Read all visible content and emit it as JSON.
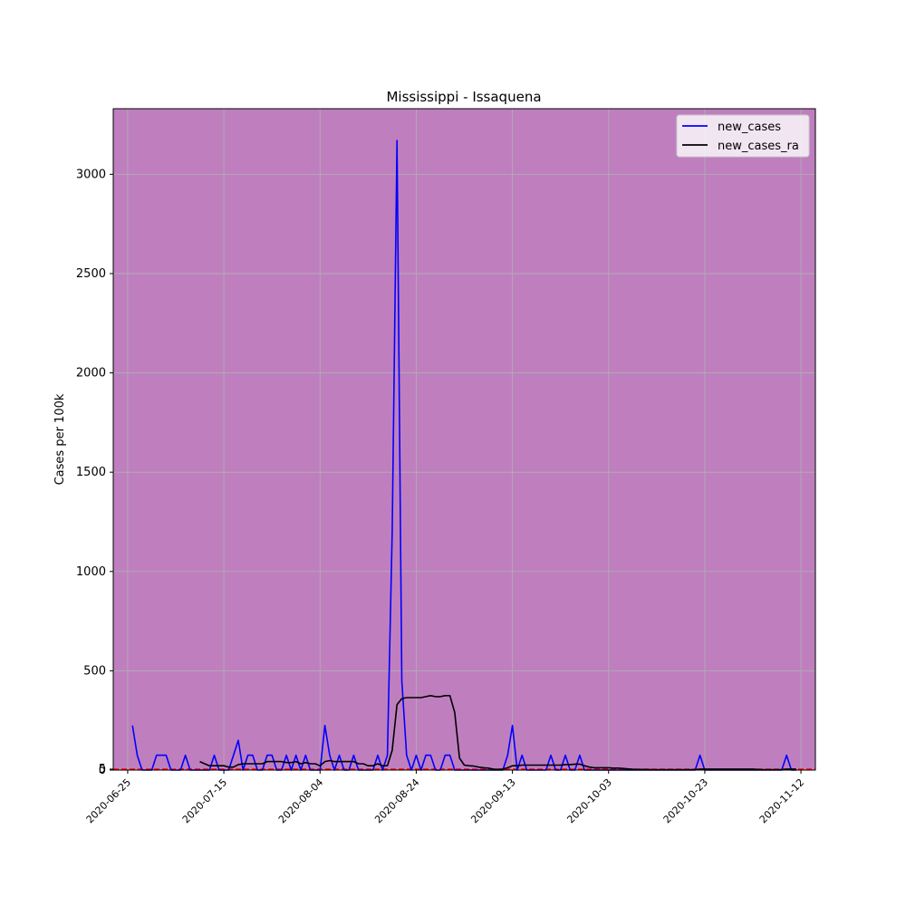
{
  "chart_data": {
    "type": "line",
    "title": "Mississippi - Issaquena",
    "xlabel": "",
    "ylabel": "Cases per 100k",
    "x_start": "2020-06-22",
    "x_end": "2020-11-15",
    "ylim": [
      0,
      3330
    ],
    "grid": true,
    "legend_position": "top-right",
    "colors": {
      "background": "#bf7fbf",
      "new_cases": "#0000ff",
      "new_cases_ra": "#000000",
      "grid": "#b0b0b0",
      "baseline": "#ff0000"
    },
    "x_ticks": [
      "2020-06-25",
      "2020-07-15",
      "2020-08-04",
      "2020-08-24",
      "2020-09-13",
      "2020-10-03",
      "2020-10-23",
      "2020-11-12"
    ],
    "y_ticks": [
      {
        "value": 0,
        "label": "0"
      },
      {
        "value": 5,
        "label": "5"
      },
      {
        "value": 500,
        "label": "500"
      },
      {
        "value": 1000,
        "label": "1000"
      },
      {
        "value": 1500,
        "label": "1500"
      },
      {
        "value": 2000,
        "label": "2000"
      },
      {
        "value": 2500,
        "label": "2500"
      },
      {
        "value": 3000,
        "label": "3000"
      }
    ],
    "series": [
      {
        "name": "new_cases",
        "points": [
          [
            "2020-06-26",
            225
          ],
          [
            "2020-06-27",
            75
          ],
          [
            "2020-06-28",
            0
          ],
          [
            "2020-06-29",
            0
          ],
          [
            "2020-06-30",
            0
          ],
          [
            "2020-07-01",
            75
          ],
          [
            "2020-07-02",
            75
          ],
          [
            "2020-07-03",
            75
          ],
          [
            "2020-07-04",
            0
          ],
          [
            "2020-07-05",
            0
          ],
          [
            "2020-07-06",
            0
          ],
          [
            "2020-07-07",
            75
          ],
          [
            "2020-07-08",
            0
          ],
          [
            "2020-07-09",
            0
          ],
          [
            "2020-07-10",
            0
          ],
          [
            "2020-07-11",
            0
          ],
          [
            "2020-07-12",
            0
          ],
          [
            "2020-07-13",
            75
          ],
          [
            "2020-07-14",
            0
          ],
          [
            "2020-07-15",
            0
          ],
          [
            "2020-07-16",
            0
          ],
          [
            "2020-07-17",
            75
          ],
          [
            "2020-07-18",
            150
          ],
          [
            "2020-07-19",
            0
          ],
          [
            "2020-07-20",
            75
          ],
          [
            "2020-07-21",
            75
          ],
          [
            "2020-07-22",
            0
          ],
          [
            "2020-07-23",
            0
          ],
          [
            "2020-07-24",
            75
          ],
          [
            "2020-07-25",
            75
          ],
          [
            "2020-07-26",
            0
          ],
          [
            "2020-07-27",
            0
          ],
          [
            "2020-07-28",
            75
          ],
          [
            "2020-07-29",
            0
          ],
          [
            "2020-07-30",
            75
          ],
          [
            "2020-07-31",
            0
          ],
          [
            "2020-08-01",
            75
          ],
          [
            "2020-08-02",
            0
          ],
          [
            "2020-08-03",
            0
          ],
          [
            "2020-08-04",
            0
          ],
          [
            "2020-08-05",
            225
          ],
          [
            "2020-08-06",
            75
          ],
          [
            "2020-08-07",
            0
          ],
          [
            "2020-08-08",
            75
          ],
          [
            "2020-08-09",
            0
          ],
          [
            "2020-08-10",
            0
          ],
          [
            "2020-08-11",
            75
          ],
          [
            "2020-08-12",
            0
          ],
          [
            "2020-08-13",
            0
          ],
          [
            "2020-08-14",
            0
          ],
          [
            "2020-08-15",
            0
          ],
          [
            "2020-08-16",
            75
          ],
          [
            "2020-08-17",
            0
          ],
          [
            "2020-08-18",
            75
          ],
          [
            "2020-08-19",
            1200
          ],
          [
            "2020-08-20",
            3170
          ],
          [
            "2020-08-21",
            450
          ],
          [
            "2020-08-22",
            75
          ],
          [
            "2020-08-23",
            0
          ],
          [
            "2020-08-24",
            75
          ],
          [
            "2020-08-25",
            0
          ],
          [
            "2020-08-26",
            75
          ],
          [
            "2020-08-27",
            75
          ],
          [
            "2020-08-28",
            0
          ],
          [
            "2020-08-29",
            0
          ],
          [
            "2020-08-30",
            75
          ],
          [
            "2020-08-31",
            75
          ],
          [
            "2020-09-01",
            0
          ],
          [
            "2020-09-02",
            0
          ],
          [
            "2020-09-03",
            0
          ],
          [
            "2020-09-04",
            0
          ],
          [
            "2020-09-05",
            0
          ],
          [
            "2020-09-06",
            0
          ],
          [
            "2020-09-07",
            0
          ],
          [
            "2020-09-08",
            0
          ],
          [
            "2020-09-09",
            0
          ],
          [
            "2020-09-10",
            0
          ],
          [
            "2020-09-11",
            0
          ],
          [
            "2020-09-12",
            75
          ],
          [
            "2020-09-13",
            225
          ],
          [
            "2020-09-14",
            0
          ],
          [
            "2020-09-15",
            75
          ],
          [
            "2020-09-16",
            0
          ],
          [
            "2020-09-17",
            0
          ],
          [
            "2020-09-18",
            0
          ],
          [
            "2020-09-19",
            0
          ],
          [
            "2020-09-20",
            0
          ],
          [
            "2020-09-21",
            75
          ],
          [
            "2020-09-22",
            0
          ],
          [
            "2020-09-23",
            0
          ],
          [
            "2020-09-24",
            75
          ],
          [
            "2020-09-25",
            0
          ],
          [
            "2020-09-26",
            0
          ],
          [
            "2020-09-27",
            75
          ],
          [
            "2020-09-28",
            0
          ],
          [
            "2020-09-29",
            0
          ],
          [
            "2020-09-30",
            0
          ],
          [
            "2020-10-01",
            0
          ],
          [
            "2020-10-02",
            0
          ],
          [
            "2020-10-03",
            0
          ],
          [
            "2020-10-04",
            0
          ],
          [
            "2020-10-05",
            0
          ],
          [
            "2020-10-06",
            0
          ],
          [
            "2020-10-07",
            0
          ],
          [
            "2020-10-08",
            0
          ],
          [
            "2020-10-09",
            0
          ],
          [
            "2020-10-10",
            0
          ],
          [
            "2020-10-11",
            0
          ],
          [
            "2020-10-12",
            0
          ],
          [
            "2020-10-13",
            0
          ],
          [
            "2020-10-14",
            0
          ],
          [
            "2020-10-15",
            0
          ],
          [
            "2020-10-16",
            0
          ],
          [
            "2020-10-17",
            0
          ],
          [
            "2020-10-18",
            0
          ],
          [
            "2020-10-19",
            0
          ],
          [
            "2020-10-20",
            0
          ],
          [
            "2020-10-21",
            0
          ],
          [
            "2020-10-22",
            75
          ],
          [
            "2020-10-23",
            0
          ],
          [
            "2020-10-24",
            0
          ],
          [
            "2020-10-25",
            0
          ],
          [
            "2020-10-26",
            0
          ],
          [
            "2020-10-27",
            0
          ],
          [
            "2020-10-28",
            0
          ],
          [
            "2020-10-29",
            0
          ],
          [
            "2020-10-30",
            0
          ],
          [
            "2020-10-31",
            0
          ],
          [
            "2020-11-01",
            0
          ],
          [
            "2020-11-02",
            0
          ],
          [
            "2020-11-03",
            0
          ],
          [
            "2020-11-04",
            0
          ],
          [
            "2020-11-05",
            0
          ],
          [
            "2020-11-06",
            0
          ],
          [
            "2020-11-07",
            0
          ],
          [
            "2020-11-08",
            0
          ],
          [
            "2020-11-09",
            75
          ],
          [
            "2020-11-10",
            0
          ],
          [
            "2020-11-11",
            0
          ]
        ]
      },
      {
        "name": "new_cases_ra",
        "points": [
          [
            "2020-07-10",
            43
          ],
          [
            "2020-07-11",
            32
          ],
          [
            "2020-07-12",
            22
          ],
          [
            "2020-07-13",
            22
          ],
          [
            "2020-07-14",
            22
          ],
          [
            "2020-07-15",
            22
          ],
          [
            "2020-07-16",
            15
          ],
          [
            "2020-07-17",
            15
          ],
          [
            "2020-07-18",
            28
          ],
          [
            "2020-07-19",
            32
          ],
          [
            "2020-07-20",
            32
          ],
          [
            "2020-07-21",
            32
          ],
          [
            "2020-07-22",
            32
          ],
          [
            "2020-07-23",
            32
          ],
          [
            "2020-07-24",
            43
          ],
          [
            "2020-07-25",
            43
          ],
          [
            "2020-07-26",
            43
          ],
          [
            "2020-07-27",
            43
          ],
          [
            "2020-07-28",
            38
          ],
          [
            "2020-07-29",
            38
          ],
          [
            "2020-07-30",
            43
          ],
          [
            "2020-07-31",
            32
          ],
          [
            "2020-08-01",
            38
          ],
          [
            "2020-08-02",
            32
          ],
          [
            "2020-08-03",
            32
          ],
          [
            "2020-08-04",
            22
          ],
          [
            "2020-08-05",
            43
          ],
          [
            "2020-08-06",
            48
          ],
          [
            "2020-08-07",
            43
          ],
          [
            "2020-08-08",
            43
          ],
          [
            "2020-08-09",
            43
          ],
          [
            "2020-08-10",
            43
          ],
          [
            "2020-08-11",
            43
          ],
          [
            "2020-08-12",
            32
          ],
          [
            "2020-08-13",
            32
          ],
          [
            "2020-08-14",
            22
          ],
          [
            "2020-08-15",
            22
          ],
          [
            "2020-08-16",
            32
          ],
          [
            "2020-08-17",
            22
          ],
          [
            "2020-08-18",
            22
          ],
          [
            "2020-08-19",
            100
          ],
          [
            "2020-08-20",
            330
          ],
          [
            "2020-08-21",
            360
          ],
          [
            "2020-08-22",
            365
          ],
          [
            "2020-08-23",
            365
          ],
          [
            "2020-08-24",
            365
          ],
          [
            "2020-08-25",
            365
          ],
          [
            "2020-08-26",
            370
          ],
          [
            "2020-08-27",
            375
          ],
          [
            "2020-08-28",
            370
          ],
          [
            "2020-08-29",
            370
          ],
          [
            "2020-08-30",
            375
          ],
          [
            "2020-08-31",
            375
          ],
          [
            "2020-09-01",
            290
          ],
          [
            "2020-09-02",
            60
          ],
          [
            "2020-09-03",
            25
          ],
          [
            "2020-09-04",
            22
          ],
          [
            "2020-09-05",
            20
          ],
          [
            "2020-09-06",
            15
          ],
          [
            "2020-09-07",
            12
          ],
          [
            "2020-09-08",
            10
          ],
          [
            "2020-09-09",
            5
          ],
          [
            "2020-09-10",
            3
          ],
          [
            "2020-09-11",
            5
          ],
          [
            "2020-09-12",
            12
          ],
          [
            "2020-09-13",
            22
          ],
          [
            "2020-09-14",
            22
          ],
          [
            "2020-09-15",
            25
          ],
          [
            "2020-09-16",
            25
          ],
          [
            "2020-09-17",
            25
          ],
          [
            "2020-09-18",
            25
          ],
          [
            "2020-09-19",
            25
          ],
          [
            "2020-09-20",
            25
          ],
          [
            "2020-09-21",
            25
          ],
          [
            "2020-09-22",
            25
          ],
          [
            "2020-09-23",
            25
          ],
          [
            "2020-09-24",
            28
          ],
          [
            "2020-09-25",
            28
          ],
          [
            "2020-09-26",
            30
          ],
          [
            "2020-09-27",
            30
          ],
          [
            "2020-09-28",
            22
          ],
          [
            "2020-09-29",
            15
          ],
          [
            "2020-09-30",
            12
          ],
          [
            "2020-10-01",
            12
          ],
          [
            "2020-10-02",
            12
          ],
          [
            "2020-10-03",
            12
          ],
          [
            "2020-10-04",
            10
          ],
          [
            "2020-10-05",
            10
          ],
          [
            "2020-10-06",
            8
          ],
          [
            "2020-10-07",
            6
          ],
          [
            "2020-10-08",
            4
          ],
          [
            "2020-10-09",
            3
          ],
          [
            "2020-10-10",
            3
          ],
          [
            "2020-10-11",
            3
          ],
          [
            "2020-10-12",
            2
          ],
          [
            "2020-10-13",
            2
          ],
          [
            "2020-10-14",
            2
          ],
          [
            "2020-10-15",
            2
          ],
          [
            "2020-10-16",
            2
          ],
          [
            "2020-10-17",
            2
          ],
          [
            "2020-10-18",
            2
          ],
          [
            "2020-10-19",
            2
          ],
          [
            "2020-10-20",
            2
          ],
          [
            "2020-10-21",
            2
          ],
          [
            "2020-10-22",
            5
          ],
          [
            "2020-10-23",
            5
          ],
          [
            "2020-10-24",
            5
          ],
          [
            "2020-10-25",
            5
          ],
          [
            "2020-10-26",
            5
          ],
          [
            "2020-10-27",
            5
          ],
          [
            "2020-10-28",
            5
          ],
          [
            "2020-10-29",
            5
          ],
          [
            "2020-10-30",
            5
          ],
          [
            "2020-10-31",
            5
          ],
          [
            "2020-11-01",
            5
          ],
          [
            "2020-11-02",
            5
          ],
          [
            "2020-11-03",
            3
          ],
          [
            "2020-11-04",
            2
          ],
          [
            "2020-11-05",
            2
          ],
          [
            "2020-11-06",
            2
          ],
          [
            "2020-11-07",
            2
          ],
          [
            "2020-11-08",
            2
          ],
          [
            "2020-11-09",
            5
          ],
          [
            "2020-11-10",
            5
          ],
          [
            "2020-11-11",
            5
          ]
        ]
      }
    ],
    "reference_line": {
      "value": 5
    }
  }
}
